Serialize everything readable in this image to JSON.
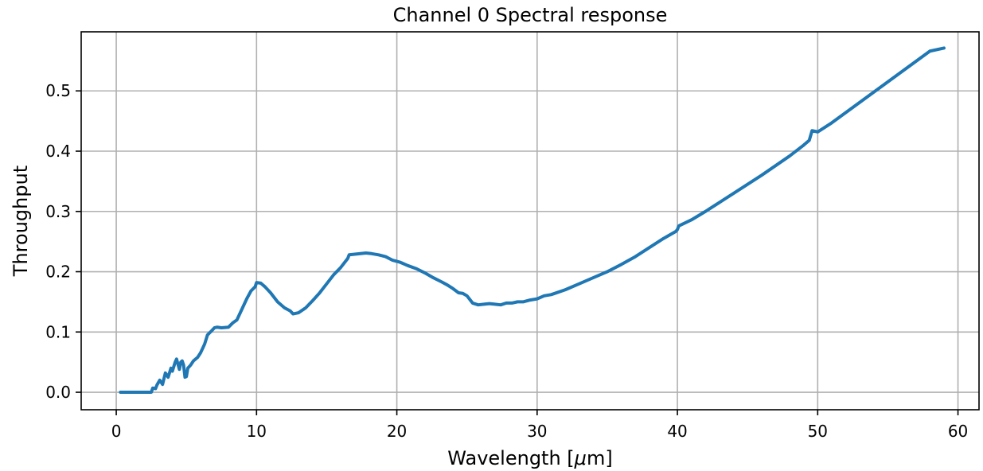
{
  "chart_data": {
    "type": "line",
    "title": "Channel 0 Spectral response",
    "xlabel": "Wavelength [",
    "xlabel_mu": "μ",
    "xlabel_suffix": "m]",
    "ylabel": "Throughput",
    "xlim": [
      -2.5,
      61.5
    ],
    "ylim": [
      -0.029,
      0.598
    ],
    "x_ticks": [
      0,
      10,
      20,
      30,
      40,
      50,
      60
    ],
    "x_tick_labels": [
      "0",
      "10",
      "20",
      "30",
      "40",
      "50",
      "60"
    ],
    "y_ticks": [
      0.0,
      0.1,
      0.2,
      0.3,
      0.4,
      0.5
    ],
    "y_tick_labels": [
      "0.0",
      "0.1",
      "0.2",
      "0.3",
      "0.4",
      "0.5"
    ],
    "grid": true,
    "series": [
      {
        "color": "#1f77b4",
        "x": [
          0.3,
          1.0,
          2.0,
          2.5,
          2.6,
          2.8,
          2.9,
          3.1,
          3.3,
          3.5,
          3.7,
          3.9,
          4.0,
          4.2,
          4.3,
          4.5,
          4.6,
          4.7,
          4.8,
          4.9,
          5.0,
          5.1,
          5.3,
          5.5,
          5.8,
          6.0,
          6.3,
          6.5,
          6.8,
          7.0,
          7.2,
          7.5,
          8.0,
          8.3,
          8.6,
          9.0,
          9.3,
          9.6,
          9.9,
          10.0,
          10.3,
          10.6,
          11.0,
          11.5,
          12.0,
          12.4,
          12.6,
          13.0,
          13.5,
          14.0,
          14.5,
          15.0,
          15.5,
          16.0,
          16.5,
          16.6,
          17.0,
          17.4,
          17.8,
          18.2,
          18.7,
          19.2,
          19.7,
          20.2,
          20.8,
          21.4,
          22.0,
          22.6,
          23.2,
          23.6,
          24.0,
          24.4,
          24.7,
          25.0,
          25.4,
          25.8,
          26.2,
          26.6,
          27.0,
          27.4,
          27.8,
          28.2,
          28.6,
          29.0,
          29.5,
          30.0,
          30.5,
          31.0,
          32.0,
          33.0,
          34.0,
          35.0,
          36.0,
          37.0,
          38.0,
          39.0,
          39.9,
          40.0,
          40.1,
          41.0,
          42.0,
          43.0,
          44.0,
          45.0,
          46.0,
          47.0,
          48.0,
          49.0,
          49.4,
          49.6,
          50.0,
          51.0,
          52.0,
          53.0,
          54.0,
          55.0,
          56.0,
          57.0,
          58.0,
          59.0
        ],
        "y": [
          0.0,
          0.0,
          0.0,
          0.0,
          0.007,
          0.006,
          0.012,
          0.02,
          0.013,
          0.032,
          0.025,
          0.04,
          0.035,
          0.05,
          0.055,
          0.038,
          0.05,
          0.052,
          0.045,
          0.025,
          0.026,
          0.04,
          0.045,
          0.052,
          0.058,
          0.065,
          0.08,
          0.095,
          0.102,
          0.107,
          0.108,
          0.107,
          0.108,
          0.115,
          0.12,
          0.14,
          0.155,
          0.168,
          0.175,
          0.182,
          0.181,
          0.175,
          0.165,
          0.15,
          0.14,
          0.135,
          0.13,
          0.132,
          0.14,
          0.152,
          0.165,
          0.18,
          0.195,
          0.207,
          0.222,
          0.228,
          0.229,
          0.23,
          0.231,
          0.23,
          0.228,
          0.225,
          0.219,
          0.216,
          0.21,
          0.205,
          0.198,
          0.19,
          0.183,
          0.178,
          0.172,
          0.165,
          0.164,
          0.16,
          0.148,
          0.145,
          0.146,
          0.147,
          0.146,
          0.145,
          0.148,
          0.148,
          0.15,
          0.15,
          0.153,
          0.155,
          0.16,
          0.162,
          0.17,
          0.18,
          0.19,
          0.2,
          0.212,
          0.225,
          0.24,
          0.255,
          0.267,
          0.27,
          0.276,
          0.286,
          0.3,
          0.315,
          0.33,
          0.345,
          0.36,
          0.376,
          0.392,
          0.41,
          0.418,
          0.434,
          0.432,
          0.447,
          0.464,
          0.481,
          0.498,
          0.515,
          0.532,
          0.549,
          0.566,
          0.571
        ]
      }
    ]
  }
}
